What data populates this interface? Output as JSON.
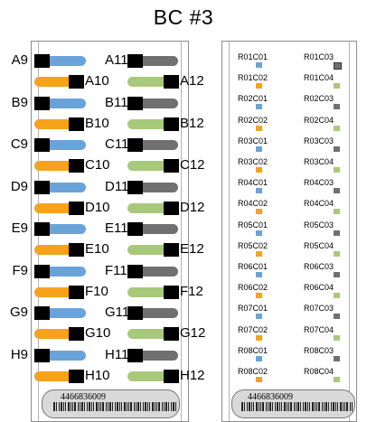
{
  "title": "BC #3",
  "colors": {
    "blue": "#6aa3d8",
    "orange": "#f7a21b",
    "gray": "#707070",
    "green": "#a9c97a",
    "black": "#000000",
    "panel_border": "#8c8c8c",
    "barcode_fill": "#d9d9d9"
  },
  "left_panel": {
    "rows": [
      {
        "left_label": "A9",
        "right_label": "A11",
        "pair_left_label": "A10",
        "pair_right_label": "A12"
      },
      {
        "left_label": "B9",
        "right_label": "B11",
        "pair_left_label": "B10",
        "pair_right_label": "B12"
      },
      {
        "left_label": "C9",
        "right_label": "C11",
        "pair_left_label": "C10",
        "pair_right_label": "C12"
      },
      {
        "left_label": "D9",
        "right_label": "D11",
        "pair_left_label": "D10",
        "pair_right_label": "D12"
      },
      {
        "left_label": "E9",
        "right_label": "E11",
        "pair_left_label": "E10",
        "pair_right_label": "E12"
      },
      {
        "left_label": "F9",
        "right_label": "F11",
        "pair_left_label": "F10",
        "pair_right_label": "F12"
      },
      {
        "left_label": "G9",
        "right_label": "G11",
        "pair_left_label": "G10",
        "pair_right_label": "G12"
      },
      {
        "left_label": "H9",
        "right_label": "H11",
        "pair_left_label": "H10",
        "pair_right_label": "H12"
      }
    ],
    "barcode": "4466836009"
  },
  "right_panel": {
    "wells": [
      {
        "left": "R01C01",
        "left_color": "blue",
        "right": "R01C03",
        "right_color": "gray"
      },
      {
        "left": "R01C02",
        "left_color": "orange",
        "right": "R01C04",
        "right_color": "green"
      },
      {
        "left": "R02C01",
        "left_color": "blue",
        "right": "R02C03",
        "right_color": "gray"
      },
      {
        "left": "R02C02",
        "left_color": "orange",
        "right": "R02C04",
        "right_color": "green"
      },
      {
        "left": "R03C01",
        "left_color": "blue",
        "right": "R03C03",
        "right_color": "gray"
      },
      {
        "left": "R03C02",
        "left_color": "orange",
        "right": "R03C04",
        "right_color": "green"
      },
      {
        "left": "R04C01",
        "left_color": "blue",
        "right": "R04C03",
        "right_color": "gray"
      },
      {
        "left": "R04C02",
        "left_color": "orange",
        "right": "R04C04",
        "right_color": "green"
      },
      {
        "left": "R05C01",
        "left_color": "blue",
        "right": "R05C03",
        "right_color": "gray"
      },
      {
        "left": "R05C02",
        "left_color": "orange",
        "right": "R05C04",
        "right_color": "green"
      },
      {
        "left": "R06C01",
        "left_color": "blue",
        "right": "R06C03",
        "right_color": "gray"
      },
      {
        "left": "R06C02",
        "left_color": "orange",
        "right": "R06C04",
        "right_color": "green"
      },
      {
        "left": "R07C01",
        "left_color": "blue",
        "right": "R07C03",
        "right_color": "gray"
      },
      {
        "left": "R07C02",
        "left_color": "orange",
        "right": "R07C04",
        "right_color": "green"
      },
      {
        "left": "R08C01",
        "left_color": "blue",
        "right": "R08C03",
        "right_color": "gray"
      },
      {
        "left": "R08C02",
        "left_color": "orange",
        "right": "R08C04",
        "right_color": "green"
      }
    ],
    "barcode": "4466836009"
  }
}
